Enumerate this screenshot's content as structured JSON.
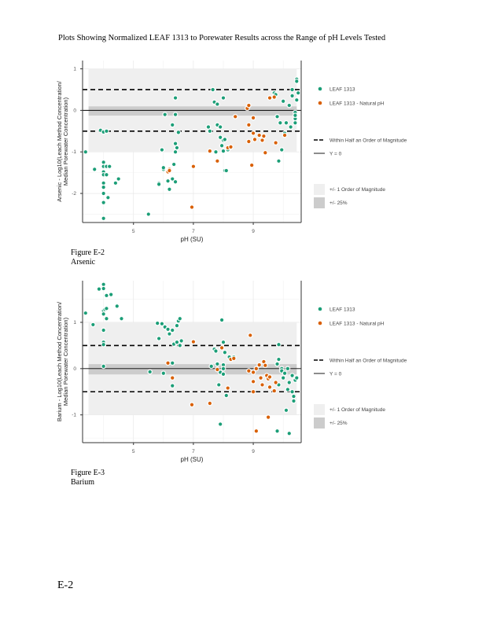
{
  "page": {
    "title": "Plots Showing Normalized LEAF 1313 to Porewater Results across the Range of pH Levels Tested",
    "footer": "E-2"
  },
  "figures": [
    {
      "number": "Figure E-2",
      "name": "Arsenic"
    },
    {
      "number": "Figure E-3",
      "name": "Barium"
    }
  ],
  "colors": {
    "leaf": "#1b9e77",
    "natural": "#d95f02",
    "band_order": "#efefef",
    "band_25": "#cccccc"
  },
  "chart_data": [
    {
      "type": "scatter",
      "title": "Arsenic",
      "xlabel": "pH (SU)",
      "ylabel": "Arsenic - Log10(Leach Method Concentration/ Median Porewater Concentration)",
      "xlim": [
        3.3,
        10.6
      ],
      "ylim": [
        -2.7,
        1.2
      ],
      "xticks": [
        5,
        7,
        9
      ],
      "yticks": [
        1,
        0,
        -1,
        -2
      ],
      "grid": true,
      "legend_position": "right",
      "legend": {
        "points": [
          "LEAF 1313",
          "LEAF 1313 - Natural pH"
        ],
        "lines": [
          "Within Half an Order of Magnitude",
          "Y = 0"
        ],
        "bands": [
          "+/- 1 Order of Magnitude",
          "+/- 25%"
        ]
      },
      "reference": {
        "half_order": [
          0.5,
          -0.5
        ],
        "zero": 0,
        "one_order": [
          -1,
          1
        ],
        "pct25": [
          -0.125,
          0.097
        ]
      },
      "series": [
        {
          "name": "LEAF 1313",
          "points": [
            [
              3.4,
              -1.0
            ],
            [
              3.7,
              -1.42
            ],
            [
              3.9,
              -0.48
            ],
            [
              4.0,
              -0.52
            ],
            [
              4.0,
              -1.25
            ],
            [
              4.0,
              -1.35
            ],
            [
              4.0,
              -1.48
            ],
            [
              4.0,
              -1.55
            ],
            [
              4.0,
              -1.75
            ],
            [
              4.0,
              -1.85
            ],
            [
              4.0,
              -2.0
            ],
            [
              4.0,
              -2.22
            ],
            [
              4.0,
              -2.6
            ],
            [
              4.1,
              -0.5
            ],
            [
              4.1,
              -1.35
            ],
            [
              4.1,
              -1.55
            ],
            [
              4.15,
              -2.1
            ],
            [
              4.2,
              -1.35
            ],
            [
              4.4,
              -1.75
            ],
            [
              4.5,
              -1.65
            ],
            [
              5.5,
              -2.5
            ],
            [
              5.85,
              -1.75
            ],
            [
              5.85,
              -1.78
            ],
            [
              5.95,
              -0.95
            ],
            [
              6.0,
              -1.42
            ],
            [
              6.0,
              -1.38
            ],
            [
              6.05,
              -0.1
            ],
            [
              6.15,
              -1.7
            ],
            [
              6.2,
              -1.9
            ],
            [
              6.3,
              -1.65
            ],
            [
              6.3,
              -0.35
            ],
            [
              6.35,
              -1.3
            ],
            [
              6.4,
              0.3
            ],
            [
              6.4,
              -0.1
            ],
            [
              6.4,
              -0.8
            ],
            [
              6.4,
              -1.72
            ],
            [
              6.4,
              -1.0
            ],
            [
              6.45,
              -0.9
            ],
            [
              6.5,
              -0.53
            ],
            [
              7.5,
              -0.4
            ],
            [
              7.55,
              -0.5
            ],
            [
              7.65,
              0.5
            ],
            [
              7.7,
              0.2
            ],
            [
              7.8,
              0.15
            ],
            [
              7.75,
              -1.0
            ],
            [
              7.8,
              -0.35
            ],
            [
              7.9,
              -0.4
            ],
            [
              7.9,
              -0.65
            ],
            [
              8.0,
              -0.72
            ],
            [
              7.95,
              -0.85
            ],
            [
              8.05,
              -0.7
            ],
            [
              8.0,
              -0.98
            ],
            [
              8.05,
              -1.45
            ],
            [
              8.1,
              -1.45
            ],
            [
              8.0,
              0.3
            ],
            [
              8.15,
              -0.95
            ],
            [
              9.7,
              0.42
            ],
            [
              9.75,
              0.38
            ],
            [
              9.8,
              -0.15
            ],
            [
              9.85,
              -1.22
            ],
            [
              9.9,
              -0.3
            ],
            [
              9.95,
              -0.95
            ],
            [
              10.0,
              0.22
            ],
            [
              10.05,
              -0.55
            ],
            [
              10.1,
              -0.3
            ],
            [
              10.2,
              0.12
            ],
            [
              10.25,
              -0.4
            ],
            [
              10.3,
              0.35
            ],
            [
              10.3,
              0.5
            ],
            [
              10.4,
              -0.05
            ],
            [
              10.4,
              -0.2
            ],
            [
              10.4,
              -0.3
            ],
            [
              10.4,
              -0.12
            ],
            [
              10.45,
              0.25
            ],
            [
              10.45,
              0.75
            ],
            [
              10.45,
              0.7
            ],
            [
              10.5,
              0.42
            ]
          ]
        },
        {
          "name": "LEAF 1313 - Natural pH",
          "points": [
            [
              6.15,
              -1.48
            ],
            [
              6.2,
              -1.42
            ],
            [
              6.2,
              -1.45
            ],
            [
              6.95,
              -2.33
            ],
            [
              7.0,
              -1.35
            ],
            [
              7.55,
              -0.98
            ],
            [
              7.8,
              -1.22
            ],
            [
              8.15,
              -0.9
            ],
            [
              8.25,
              -0.88
            ],
            [
              8.4,
              -0.15
            ],
            [
              8.8,
              0.05
            ],
            [
              8.85,
              0.12
            ],
            [
              8.85,
              -0.35
            ],
            [
              8.85,
              -0.75
            ],
            [
              8.95,
              -1.32
            ],
            [
              9.0,
              -0.18
            ],
            [
              9.0,
              -0.55
            ],
            [
              9.05,
              -0.7
            ],
            [
              9.2,
              -0.6
            ],
            [
              9.3,
              -0.72
            ],
            [
              9.35,
              -0.62
            ],
            [
              9.4,
              -1.02
            ],
            [
              9.55,
              0.3
            ],
            [
              9.7,
              0.32
            ],
            [
              9.75,
              -0.78
            ],
            [
              10.05,
              -0.6
            ]
          ]
        }
      ]
    },
    {
      "type": "scatter",
      "title": "Barium",
      "xlabel": "pH (SU)",
      "ylabel": "Barium - Log10(Leach Method Concentration/ Median Porewater Concentration)",
      "xlim": [
        3.3,
        10.6
      ],
      "ylim": [
        -1.6,
        1.9
      ],
      "xticks": [
        5,
        7,
        9
      ],
      "yticks": [
        1,
        0,
        -1
      ],
      "grid": true,
      "legend_position": "right",
      "legend": {
        "points": [
          "LEAF 1313",
          "LEAF 1313 - Natural pH"
        ],
        "lines": [
          "Within Half an Order of Magnitude",
          "Y = 0"
        ],
        "bands": [
          "+/- 1 Order of Magnitude",
          "+/- 25%"
        ]
      },
      "reference": {
        "half_order": [
          0.5,
          -0.5
        ],
        "zero": 0,
        "one_order": [
          -1,
          1
        ],
        "pct25": [
          -0.125,
          0.097
        ]
      },
      "series": [
        {
          "name": "LEAF 1313",
          "points": [
            [
              3.4,
              1.2
            ],
            [
              3.65,
              0.95
            ],
            [
              3.85,
              1.72
            ],
            [
              4.0,
              1.82
            ],
            [
              4.0,
              1.73
            ],
            [
              4.0,
              1.25
            ],
            [
              4.0,
              1.18
            ],
            [
              4.0,
              0.83
            ],
            [
              4.0,
              0.57
            ],
            [
              4.0,
              0.52
            ],
            [
              4.0,
              0.05
            ],
            [
              4.05,
              1.28
            ],
            [
              4.1,
              1.58
            ],
            [
              4.1,
              1.08
            ],
            [
              4.1,
              1.3
            ],
            [
              4.25,
              1.6
            ],
            [
              4.45,
              1.35
            ],
            [
              4.6,
              1.08
            ],
            [
              5.55,
              -0.07
            ],
            [
              5.8,
              0.98
            ],
            [
              5.85,
              0.65
            ],
            [
              5.95,
              0.97
            ],
            [
              6.05,
              0.9
            ],
            [
              6.15,
              0.85
            ],
            [
              6.2,
              0.75
            ],
            [
              6.3,
              0.83
            ],
            [
              6.3,
              0.12
            ],
            [
              6.3,
              -0.37
            ],
            [
              6.35,
              0.53
            ],
            [
              6.45,
              0.57
            ],
            [
              6.45,
              0.93
            ],
            [
              6.5,
              1.03
            ],
            [
              6.55,
              1.08
            ],
            [
              6.55,
              0.5
            ],
            [
              6.6,
              0.6
            ],
            [
              6.0,
              -0.1
            ],
            [
              7.95,
              1.05
            ],
            [
              8.0,
              0.57
            ],
            [
              8.0,
              0.08
            ],
            [
              7.6,
              0.05
            ],
            [
              7.7,
              0.42
            ],
            [
              7.75,
              0.38
            ],
            [
              7.8,
              0.1
            ],
            [
              7.9,
              -0.08
            ],
            [
              8.0,
              -0.12
            ],
            [
              8.0,
              0.0
            ],
            [
              7.85,
              -0.35
            ],
            [
              8.05,
              0.35
            ],
            [
              8.1,
              -0.58
            ],
            [
              7.9,
              -1.2
            ],
            [
              8.2,
              0.25
            ],
            [
              8.35,
              0.25
            ],
            [
              9.85,
              0.52
            ],
            [
              9.8,
              0.1
            ],
            [
              9.85,
              0.2
            ],
            [
              9.85,
              -0.35
            ],
            [
              9.95,
              0.0
            ],
            [
              9.95,
              -0.05
            ],
            [
              10.0,
              -0.2
            ],
            [
              10.05,
              -0.1
            ],
            [
              9.8,
              -1.35
            ],
            [
              10.15,
              0.0
            ],
            [
              10.15,
              -0.45
            ],
            [
              10.2,
              -0.3
            ],
            [
              10.3,
              -0.15
            ],
            [
              10.3,
              -0.5
            ],
            [
              10.35,
              -0.6
            ],
            [
              10.35,
              -0.7
            ],
            [
              10.4,
              -0.25
            ],
            [
              10.45,
              -0.2
            ],
            [
              10.1,
              -0.9
            ],
            [
              10.2,
              -1.4
            ]
          ]
        },
        {
          "name": "LEAF 1313 - Natural pH",
          "points": [
            [
              6.15,
              0.12
            ],
            [
              6.3,
              -0.2
            ],
            [
              7.0,
              0.58
            ],
            [
              6.95,
              -0.78
            ],
            [
              7.95,
              0.45
            ],
            [
              8.25,
              0.2
            ],
            [
              8.35,
              0.22
            ],
            [
              7.55,
              -0.75
            ],
            [
              7.8,
              -0.02
            ],
            [
              8.15,
              -0.42
            ],
            [
              8.85,
              -0.05
            ],
            [
              8.9,
              0.72
            ],
            [
              9.0,
              -0.08
            ],
            [
              9.0,
              -0.28
            ],
            [
              9.0,
              -0.5
            ],
            [
              9.1,
              0.0
            ],
            [
              9.2,
              0.08
            ],
            [
              9.25,
              -0.2
            ],
            [
              9.3,
              -0.35
            ],
            [
              9.35,
              0.15
            ],
            [
              9.4,
              0.07
            ],
            [
              9.45,
              -0.15
            ],
            [
              9.5,
              -0.22
            ],
            [
              9.55,
              -0.4
            ],
            [
              9.5,
              -1.05
            ],
            [
              9.1,
              -1.35
            ],
            [
              9.7,
              -0.48
            ],
            [
              9.75,
              -0.3
            ],
            [
              9.55,
              -0.18
            ]
          ]
        }
      ]
    }
  ]
}
